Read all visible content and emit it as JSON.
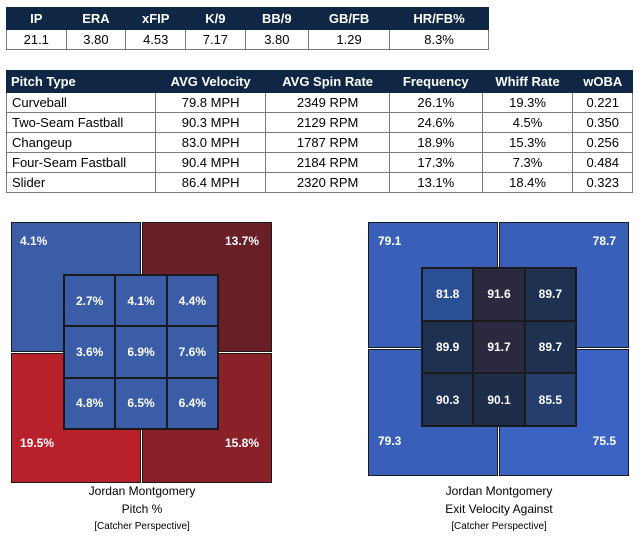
{
  "summary": {
    "headers": [
      "IP",
      "ERA",
      "xFIP",
      "K/9",
      "BB/9",
      "GB/FB",
      "HR/FB%"
    ],
    "values": [
      "21.1",
      "3.80",
      "4.53",
      "7.17",
      "3.80",
      "1.29",
      "8.3%"
    ]
  },
  "pitch_table": {
    "headers": [
      "Pitch Type",
      "AVG Velocity",
      "AVG Spin Rate",
      "Frequency",
      "Whiff Rate",
      "wOBA"
    ],
    "rows": [
      [
        "Curveball",
        "79.8 MPH",
        "2349 RPM",
        "26.1%",
        "19.3%",
        "0.221"
      ],
      [
        "Two-Seam Fastball",
        "90.3 MPH",
        "2129 RPM",
        "24.6%",
        "4.5%",
        "0.350"
      ],
      [
        "Changeup",
        "83.0 MPH",
        "1787 RPM",
        "18.9%",
        "15.3%",
        "0.256"
      ],
      [
        "Four-Seam Fastball",
        "90.4 MPH",
        "2184 RPM",
        "17.3%",
        "7.3%",
        "0.484"
      ],
      [
        "Slider",
        "86.4 MPH",
        "2320 RPM",
        "13.1%",
        "18.4%",
        "0.323"
      ]
    ]
  },
  "zone_pitch": {
    "quadrants": {
      "top_left": {
        "value": "4.1%",
        "color": "#3b5ca6"
      },
      "top_right": {
        "value": "13.7%",
        "color": "#6a1e28"
      },
      "bottom_left": {
        "value": "19.5%",
        "color": "#b8202a"
      },
      "bottom_right": {
        "value": "15.8%",
        "color": "#8a2028"
      }
    },
    "cells": [
      {
        "value": "2.7%",
        "color": "#3b5ca6"
      },
      {
        "value": "4.1%",
        "color": "#3b5ca6"
      },
      {
        "value": "4.4%",
        "color": "#3b5ca6"
      },
      {
        "value": "3.6%",
        "color": "#3b5ca6"
      },
      {
        "value": "6.9%",
        "color": "#3b5ca6"
      },
      {
        "value": "7.6%",
        "color": "#3b5ca6"
      },
      {
        "value": "4.8%",
        "color": "#3b5ca6"
      },
      {
        "value": "6.5%",
        "color": "#3b5ca6"
      },
      {
        "value": "6.4%",
        "color": "#3b5ca6"
      }
    ],
    "caption": {
      "name": "Jordan Montgomery",
      "metric": "Pitch %",
      "perspective": "[Catcher Perspective]"
    }
  },
  "zone_ev": {
    "quadrants": {
      "top_left": {
        "value": "79.1",
        "color": "#3a5fb8"
      },
      "top_right": {
        "value": "78.7",
        "color": "#3a5fb8"
      },
      "bottom_left": {
        "value": "79.3",
        "color": "#3a5fb8"
      },
      "bottom_right": {
        "value": "75.5",
        "color": "#3c63c4"
      }
    },
    "cells": [
      {
        "value": "81.8",
        "color": "#2b4f94"
      },
      {
        "value": "91.6",
        "color": "#2a2940"
      },
      {
        "value": "89.7",
        "color": "#1f3150"
      },
      {
        "value": "89.9",
        "color": "#1f3150"
      },
      {
        "value": "91.7",
        "color": "#2a2940"
      },
      {
        "value": "89.7",
        "color": "#1f3150"
      },
      {
        "value": "90.3",
        "color": "#1f3150"
      },
      {
        "value": "90.1",
        "color": "#1e2d48"
      },
      {
        "value": "85.5",
        "color": "#253e6e"
      }
    ],
    "caption": {
      "name": "Jordan Montgomery",
      "metric": "Exit Velocity Against",
      "perspective": "[Catcher Perspective]"
    }
  }
}
